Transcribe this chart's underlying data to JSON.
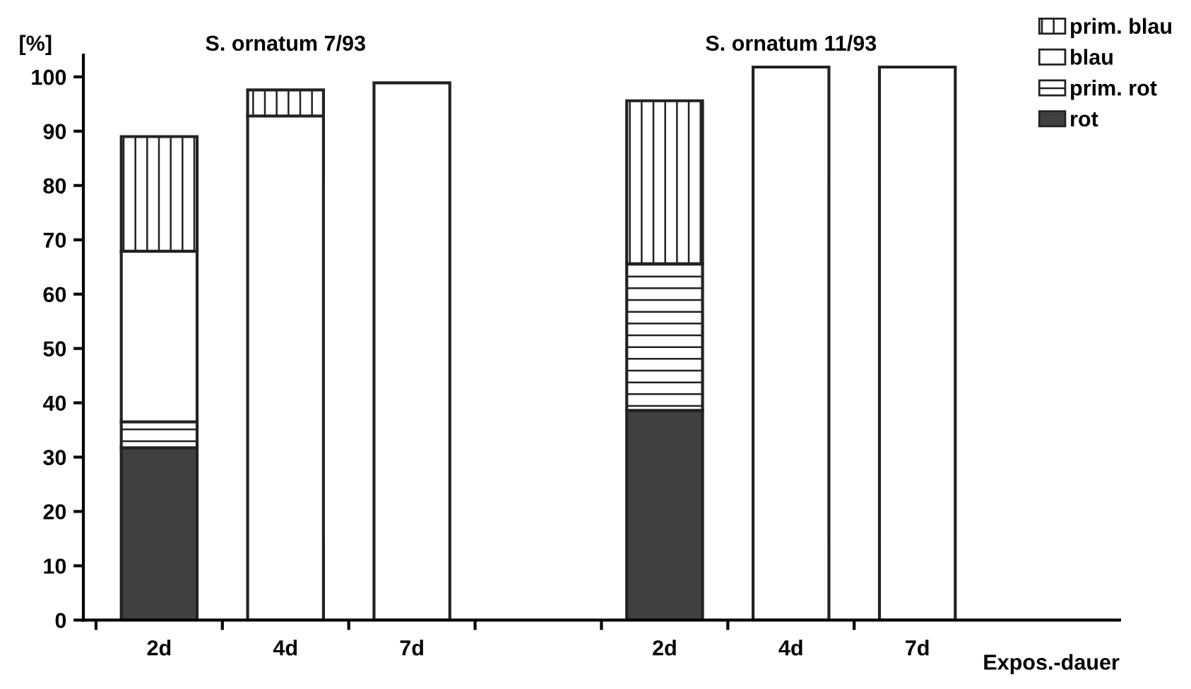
{
  "chart_data": {
    "type": "bar",
    "stacked": true,
    "ylabel": "[%]",
    "xlabel": "Expos.-dauer",
    "annotations": [
      "S. ornatum 7/93",
      "S. ornatum 11/93"
    ],
    "categories": [
      "2d",
      "4d",
      "7d",
      null,
      "2d",
      "4d",
      "7d"
    ],
    "series": [
      {
        "name": "rot",
        "color": "#404040",
        "values": [
          31.7,
          0,
          0,
          null,
          38.6,
          0,
          0
        ]
      },
      {
        "name": "prim. rot",
        "color": "#222222",
        "values": [
          4.8,
          0,
          0,
          null,
          27.0,
          0,
          0
        ]
      },
      {
        "name": "blau",
        "color": "#ffffff",
        "values": [
          31.4,
          92.8,
          98.9,
          null,
          0,
          101.8,
          101.8
        ]
      },
      {
        "name": "prim. blau",
        "color": "#222222",
        "values": [
          21.1,
          4.8,
          0,
          null,
          30.0,
          0,
          0
        ]
      }
    ],
    "ylim": [
      0,
      104
    ],
    "yticks": [
      0,
      10,
      20,
      30,
      40,
      50,
      60,
      70,
      80,
      90,
      100
    ],
    "grid": false,
    "legend": "top right"
  }
}
